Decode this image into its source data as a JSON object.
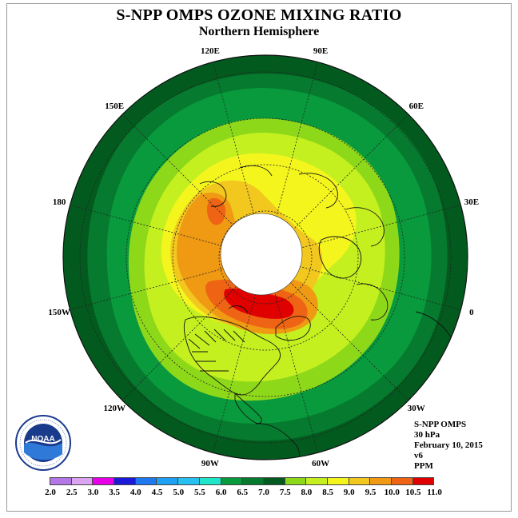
{
  "title": "S-NPP OMPS OZONE MIXING RATIO",
  "subtitle": "Northern Hemisphere",
  "longitude_labels": [
    {
      "text": "90E",
      "deg": 90
    },
    {
      "text": "60E",
      "deg": 60
    },
    {
      "text": "30E",
      "deg": 30
    },
    {
      "text": "0",
      "deg": 0
    },
    {
      "text": "30W",
      "deg": -30
    },
    {
      "text": "60W",
      "deg": -60
    },
    {
      "text": "90W",
      "deg": -90
    },
    {
      "text": "120W",
      "deg": -120
    },
    {
      "text": "150W",
      "deg": -150
    },
    {
      "text": "180",
      "deg": 180
    },
    {
      "text": "150E",
      "deg": 150
    },
    {
      "text": "120E",
      "deg": 120
    }
  ],
  "info": {
    "instrument": "S-NPP OMPS",
    "level": "30 hPa",
    "date": "February 10, 2015",
    "version": "v6",
    "units": "PPM"
  },
  "logo": {
    "text": "NOAA",
    "ring_text": "NATIONAL OCEANIC AND ATMOSPHERIC ADMINISTRATION · U.S. DEPARTMENT OF COMMERCE"
  },
  "legend": {
    "labels": [
      "2.0",
      "2.5",
      "3.0",
      "3.5",
      "4.0",
      "4.5",
      "5.0",
      "5.5",
      "6.0",
      "6.5",
      "7.0",
      "7.5",
      "8.0",
      "8.5",
      "9.0",
      "9.5",
      "10.0",
      "10.5",
      "11.0"
    ],
    "colors": [
      "#b478e6",
      "#d9a5f0",
      "#e800e8",
      "#1a1ad8",
      "#1e78f0",
      "#1ea0f5",
      "#28c0f0",
      "#1ee6c8",
      "#089a3c",
      "#067a2e",
      "#035a1e",
      "#8ed81a",
      "#c4f020",
      "#f5f51e",
      "#f2c81e",
      "#f09a14",
      "#ee6414",
      "#e00000",
      "#8c4a32"
    ]
  }
}
